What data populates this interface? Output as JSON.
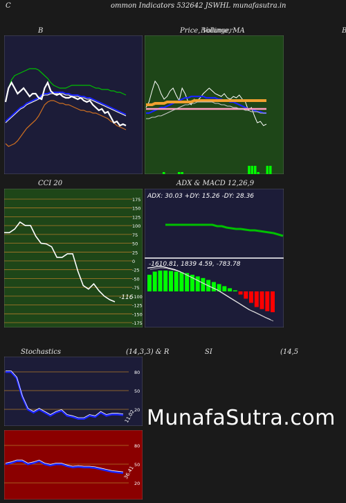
{
  "header": {
    "left_letter": "C",
    "title": "ommon  Indicators 532642  JSWHL  munafasutra.in"
  },
  "labels": {
    "bollinger_b": "B",
    "price_volume_ma": "Price,  Volume,  MA",
    "overlay_text": "Bollinger",
    "right_cut": "B",
    "cci": "CCI 20",
    "adx_macd": "ADX  & MACD 12,26,9",
    "stochastics": "Stochastics",
    "stoch_params": "(14,3,3) & R",
    "si": "SI",
    "si_params": "(14,5"
  },
  "brand": "MunafaSutra.com",
  "colors": {
    "navy": "#1c1c38",
    "green_bg": "#1e4618",
    "red_bg": "#8b0000",
    "white": "#ffffff",
    "blue": "#1a24ff",
    "green": "#00c000",
    "orange": "#d07020",
    "grid_orange": "#b07a28"
  },
  "chart_data": [
    {
      "type": "line",
      "name": "bollinger",
      "x_count": 41,
      "ylim": [
        0,
        1
      ],
      "series": [
        {
          "key": "upper",
          "color": "#00c000",
          "values": [
            0.52,
            0.62,
            0.68,
            0.71,
            0.72,
            0.73,
            0.74,
            0.75,
            0.76,
            0.76,
            0.76,
            0.75,
            0.73,
            0.71,
            0.69,
            0.66,
            0.64,
            0.63,
            0.62,
            0.62,
            0.62,
            0.63,
            0.64,
            0.64,
            0.64,
            0.64,
            0.64,
            0.64,
            0.64,
            0.63,
            0.62,
            0.62,
            0.61,
            0.61,
            0.61,
            0.6,
            0.6,
            0.59,
            0.59,
            0.58,
            0.57
          ]
        },
        {
          "key": "middle",
          "color": "#1a24ff",
          "values": [
            0.38,
            0.4,
            0.42,
            0.44,
            0.46,
            0.48,
            0.49,
            0.51,
            0.52,
            0.53,
            0.54,
            0.55,
            0.57,
            0.58,
            0.58,
            0.59,
            0.59,
            0.59,
            0.59,
            0.59,
            0.58,
            0.58,
            0.57,
            0.57,
            0.57,
            0.56,
            0.56,
            0.55,
            0.55,
            0.54,
            0.53,
            0.52,
            0.51,
            0.5,
            0.49,
            0.48,
            0.47,
            0.46,
            0.45,
            0.44,
            0.43
          ]
        },
        {
          "key": "lower",
          "color": "#d07020",
          "values": [
            0.22,
            0.2,
            0.21,
            0.22,
            0.24,
            0.27,
            0.3,
            0.33,
            0.35,
            0.37,
            0.39,
            0.42,
            0.46,
            0.5,
            0.52,
            0.53,
            0.53,
            0.52,
            0.51,
            0.51,
            0.5,
            0.5,
            0.49,
            0.48,
            0.47,
            0.46,
            0.46,
            0.45,
            0.45,
            0.44,
            0.44,
            0.43,
            0.42,
            0.41,
            0.4,
            0.38,
            0.37,
            0.35,
            0.34,
            0.33,
            0.32
          ]
        },
        {
          "key": "price",
          "color": "#ffffff",
          "values": [
            0.52,
            0.62,
            0.66,
            0.62,
            0.58,
            0.6,
            0.62,
            0.59,
            0.56,
            0.58,
            0.58,
            0.55,
            0.54,
            0.62,
            0.66,
            0.6,
            0.58,
            0.57,
            0.58,
            0.56,
            0.55,
            0.55,
            0.56,
            0.55,
            0.54,
            0.55,
            0.53,
            0.52,
            0.53,
            0.5,
            0.48,
            0.46,
            0.47,
            0.44,
            0.45,
            0.41,
            0.37,
            0.38,
            0.35,
            0.36,
            0.35
          ]
        }
      ]
    },
    {
      "type": "line",
      "name": "price_volume_ma",
      "x_count": 41,
      "ylim": [
        0,
        1
      ],
      "series": [
        {
          "key": "price",
          "color": "#ffffff",
          "values": [
            0.48,
            0.52,
            0.6,
            0.67,
            0.64,
            0.58,
            0.54,
            0.56,
            0.6,
            0.62,
            0.57,
            0.53,
            0.62,
            0.58,
            0.52,
            0.5,
            0.54,
            0.53,
            0.55,
            0.58,
            0.6,
            0.62,
            0.6,
            0.58,
            0.57,
            0.56,
            0.58,
            0.55,
            0.54,
            0.56,
            0.55,
            0.57,
            0.54,
            0.52,
            0.46,
            0.48,
            0.42,
            0.37,
            0.38,
            0.35,
            0.36
          ]
        },
        {
          "key": "ma_blue",
          "color": "#1a24ff",
          "values": [
            0.44,
            0.44,
            0.45,
            0.46,
            0.47,
            0.48,
            0.48,
            0.49,
            0.5,
            0.51,
            0.52,
            0.53,
            0.54,
            0.55,
            0.55,
            0.56,
            0.56,
            0.56,
            0.56,
            0.56,
            0.55,
            0.55,
            0.55,
            0.55,
            0.54,
            0.54,
            0.53,
            0.53,
            0.52,
            0.52,
            0.51,
            0.5,
            0.49,
            0.48,
            0.47,
            0.47,
            0.46,
            0.45,
            0.45,
            0.44,
            0.44
          ]
        },
        {
          "key": "ma_orange",
          "color": "#f0a030",
          "values": [
            0.5,
            0.5,
            0.5,
            0.51,
            0.51,
            0.51,
            0.51,
            0.52,
            0.52,
            0.52,
            0.52,
            0.52,
            0.52,
            0.52,
            0.52,
            0.52,
            0.53,
            0.53,
            0.53,
            0.53,
            0.53,
            0.53,
            0.53,
            0.53,
            0.53,
            0.53,
            0.53,
            0.53,
            0.53,
            0.53,
            0.53,
            0.53,
            0.53,
            0.53,
            0.53,
            0.53,
            0.53,
            0.53,
            0.53,
            0.53,
            0.53
          ]
        },
        {
          "key": "ma_pink",
          "color": "#ff9ec0",
          "values": [
            0.47,
            0.47,
            0.47,
            0.47,
            0.47,
            0.47,
            0.47,
            0.47,
            0.47,
            0.47,
            0.47,
            0.47,
            0.47,
            0.47,
            0.47,
            0.47,
            0.47,
            0.47,
            0.47,
            0.47,
            0.47,
            0.47,
            0.47,
            0.47,
            0.47,
            0.47,
            0.47,
            0.47,
            0.47,
            0.47,
            0.47,
            0.47,
            0.47,
            0.47,
            0.47,
            0.47,
            0.47,
            0.47,
            0.47,
            0.47,
            0.47
          ]
        },
        {
          "key": "ma_gray",
          "color": "#cccccc",
          "values": [
            0.4,
            0.4,
            0.41,
            0.41,
            0.42,
            0.42,
            0.43,
            0.44,
            0.45,
            0.46,
            0.47,
            0.48,
            0.49,
            0.5,
            0.5,
            0.51,
            0.51,
            0.52,
            0.52,
            0.52,
            0.52,
            0.52,
            0.52,
            0.51,
            0.51,
            0.5,
            0.5,
            0.49,
            0.49,
            0.48,
            0.48,
            0.47,
            0.47,
            0.46,
            0.46,
            0.45,
            0.45,
            0.45,
            0.44,
            0.44,
            0.44
          ]
        }
      ],
      "volume": [
        0,
        0,
        0,
        0,
        0,
        1,
        0,
        0,
        0,
        0,
        1,
        1,
        0,
        0,
        0,
        0,
        0,
        0,
        0,
        0,
        0,
        0,
        0,
        0,
        0,
        0,
        0,
        0,
        0,
        0,
        0,
        0,
        0,
        4,
        4,
        4,
        1,
        0,
        0,
        4,
        4
      ]
    },
    {
      "type": "line",
      "name": "cci",
      "ylim": [
        -175,
        175
      ],
      "ticks": [
        "175",
        "150",
        "125",
        "100",
        "75",
        "50",
        "25",
        "0",
        "-25",
        "-50",
        "-75",
        "-100",
        "-125",
        "-150",
        "-175"
      ],
      "last_value_label": "-116",
      "values": [
        80,
        80,
        90,
        110,
        100,
        100,
        70,
        50,
        48,
        40,
        10,
        10,
        20,
        20,
        -30,
        -70,
        -80,
        -65,
        -85,
        -100,
        -110,
        -116
      ]
    },
    {
      "type": "line",
      "name": "adx_macd",
      "adx_label": "ADX: 30.03  +DY: 15.26  -DY: 28.36",
      "macd_label": "-1610.81,  1839 4.59,  -783.78",
      "adx": [
        0.4,
        0.4,
        0.4,
        0.4,
        0.4,
        0.4,
        0.4,
        0.4,
        0.4,
        0.4,
        0.4,
        0.38,
        0.38,
        0.36,
        0.35,
        0.34,
        0.34,
        0.33,
        0.32,
        0.32,
        0.31,
        0.3,
        0.29,
        0.28,
        0.26,
        0.24
      ],
      "macd_histogram": [
        0.8,
        0.95,
        1.0,
        1.0,
        0.98,
        0.95,
        0.92,
        0.88,
        0.8,
        0.72,
        0.64,
        0.55,
        0.45,
        0.35,
        0.25,
        0.15,
        0.05,
        -0.15,
        -0.35,
        -0.55,
        -0.75,
        -0.85,
        -0.95,
        -1.0
      ]
    },
    {
      "type": "line",
      "name": "stochastics",
      "ticks": [
        "80",
        "50",
        "20"
      ],
      "last_value_label": "11.02",
      "values": [
        80,
        80,
        70,
        40,
        20,
        15,
        20,
        15,
        10,
        15,
        18,
        10,
        8,
        5,
        5,
        10,
        8,
        15,
        10,
        12,
        12,
        11
      ]
    },
    {
      "type": "line",
      "name": "rsi",
      "ticks": [
        "80",
        "50",
        "20"
      ],
      "last_value_label": "36.41",
      "values": [
        50,
        52,
        55,
        55,
        50,
        52,
        55,
        50,
        48,
        50,
        50,
        47,
        45,
        46,
        45,
        45,
        44,
        42,
        40,
        38,
        37,
        36
      ]
    }
  ]
}
